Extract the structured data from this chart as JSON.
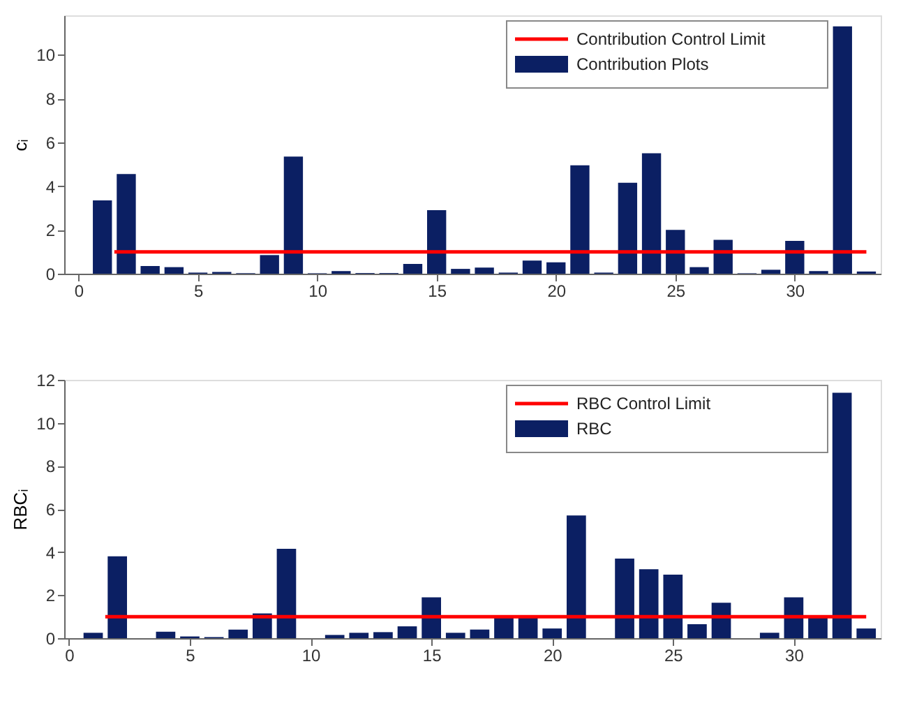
{
  "chart_data": [
    {
      "type": "bar",
      "ylabel": "cᵢ",
      "x": [
        1,
        2,
        3,
        4,
        5,
        6,
        7,
        8,
        9,
        10,
        11,
        12,
        13,
        14,
        15,
        16,
        17,
        18,
        19,
        20,
        21,
        22,
        23,
        24,
        25,
        26,
        27,
        28,
        29,
        30,
        31,
        32,
        33
      ],
      "series": [
        {
          "name": "Contribution Plots",
          "color": "#0b1f63",
          "values": [
            3.35,
            4.55,
            0.35,
            0.3,
            0.05,
            0.08,
            0.02,
            0.85,
            5.35,
            0.02,
            0.12,
            0.03,
            0.03,
            0.45,
            2.9,
            0.22,
            0.28,
            0.05,
            0.6,
            0.52,
            4.95,
            0.05,
            4.15,
            5.5,
            2.0,
            0.3,
            1.55,
            0.02,
            0.18,
            1.5,
            0.12,
            11.3,
            0.1
          ]
        }
      ],
      "ref_lines": [
        {
          "axis": "y",
          "value": 1,
          "label": "Contribution Control Limit",
          "color": "#ff0000"
        }
      ],
      "xlim": [
        -0.6,
        33.6
      ],
      "xticks": [
        0,
        5,
        10,
        15,
        20,
        25,
        30
      ],
      "ylim": [
        0,
        11.8
      ],
      "yticks": [
        0,
        2,
        4,
        6,
        8,
        10
      ],
      "legend": "top right",
      "grid": false
    },
    {
      "type": "bar",
      "ylabel": "RBCᵢ",
      "x": [
        1,
        2,
        3,
        4,
        5,
        6,
        7,
        8,
        9,
        10,
        11,
        12,
        13,
        14,
        15,
        16,
        17,
        18,
        19,
        20,
        21,
        22,
        23,
        24,
        25,
        26,
        27,
        28,
        29,
        30,
        31,
        32,
        33
      ],
      "series": [
        {
          "name": "RBC",
          "color": "#0b1f63",
          "values": [
            0.25,
            3.8,
            0,
            0.3,
            0.08,
            0.05,
            0.4,
            1.15,
            4.15,
            0,
            0.15,
            0.25,
            0.28,
            0.55,
            1.9,
            0.25,
            0.4,
            0.95,
            0.95,
            0.45,
            5.7,
            0,
            3.7,
            3.2,
            2.95,
            0.65,
            1.65,
            0,
            0.25,
            1.9,
            1.0,
            11.4,
            0.45
          ]
        }
      ],
      "ref_lines": [
        {
          "axis": "y",
          "value": 1,
          "label": "RBC Control Limit",
          "color": "#ff0000"
        }
      ],
      "xlim": [
        -0.2,
        33.6
      ],
      "xticks": [
        0,
        5,
        10,
        15,
        20,
        25,
        30
      ],
      "ylim": [
        0,
        12
      ],
      "yticks": [
        0,
        2,
        4,
        6,
        8,
        10,
        12
      ],
      "legend": "top right",
      "grid": false
    }
  ]
}
